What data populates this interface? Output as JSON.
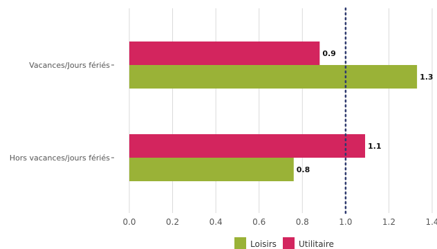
{
  "chart_data": {
    "type": "bar",
    "orientation": "horizontal",
    "categories": [
      "Vacances/Jours fériés",
      "Hors vacances/jours fériés"
    ],
    "series": [
      {
        "name": "Utilitaire",
        "values": [
          0.88,
          1.09
        ],
        "labels": [
          "0.9",
          "1.1"
        ],
        "color": "#d3255e"
      },
      {
        "name": "Loisirs",
        "values": [
          1.33,
          0.76
        ],
        "labels": [
          "1.3",
          "0.8"
        ],
        "color": "#9ab237"
      }
    ],
    "xlim": [
      0,
      1.4
    ],
    "xticks": [
      "0.0",
      "0.2",
      "0.4",
      "0.6",
      "0.8",
      "1.0",
      "1.2",
      "1.4"
    ],
    "reference_line": {
      "x": 1.0,
      "style": "dotted",
      "color": "#2e3a6e"
    },
    "grid": "vertical",
    "legend": {
      "placement": "bottom-center",
      "order": [
        "Loisirs",
        "Utilitaire"
      ]
    },
    "title": "",
    "xlabel": "",
    "ylabel": ""
  }
}
